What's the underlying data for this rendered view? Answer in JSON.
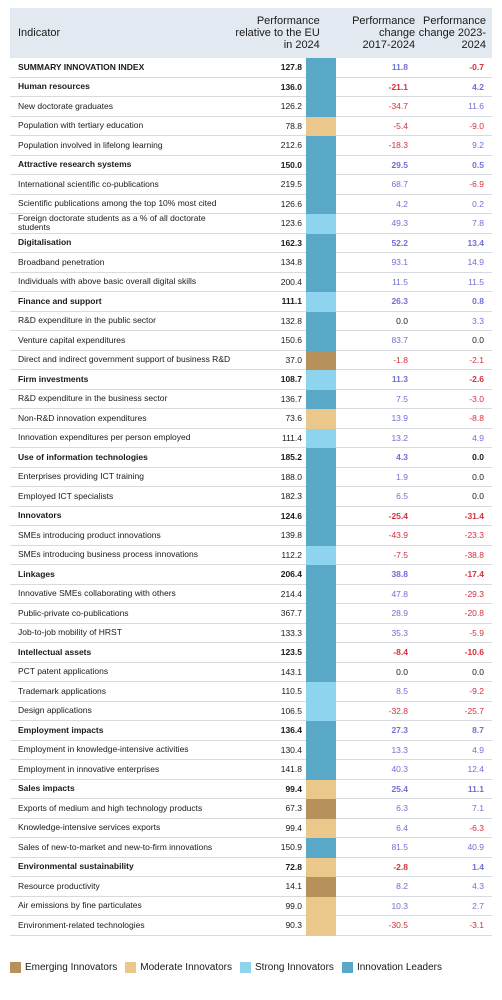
{
  "header": {
    "indicator": "Indicator",
    "perf_rel": "Performance relative to the EU in 2024",
    "change1": "Performance change 2017-2024",
    "change2": "Performance change 2023-2024"
  },
  "colors": {
    "emerging": "#b8905c",
    "moderate": "#eac88b",
    "strong": "#8fd4ee",
    "leader": "#5aa8c8",
    "positive": "#6f6fd6",
    "negative": "#d4303d"
  },
  "rows": [
    {
      "label": "SUMMARY INNOVATION INDEX",
      "perf": "127.8",
      "group": "leader",
      "ch1": "11.8",
      "ch2": "-0.7",
      "bold": true
    },
    {
      "label": "Human resources",
      "perf": "136.0",
      "group": "leader",
      "ch1": "-21.1",
      "ch2": "4.2",
      "bold": true
    },
    {
      "label": "New doctorate graduates",
      "perf": "126.2",
      "group": "leader",
      "ch1": "-34.7",
      "ch2": "11.6",
      "bold": false
    },
    {
      "label": "Population with tertiary education",
      "perf": "78.8",
      "group": "moderate",
      "ch1": "-5.4",
      "ch2": "-9.0",
      "bold": false
    },
    {
      "label": "Population involved in lifelong learning",
      "perf": "212.6",
      "group": "leader",
      "ch1": "-18.3",
      "ch2": "9.2",
      "bold": false
    },
    {
      "label": "Attractive research systems",
      "perf": "150.0",
      "group": "leader",
      "ch1": "29.5",
      "ch2": "0.5",
      "bold": true
    },
    {
      "label": "International scientific co-publications",
      "perf": "219.5",
      "group": "leader",
      "ch1": "68.7",
      "ch2": "-6.9",
      "bold": false
    },
    {
      "label": "Scientific publications among the top 10% most cited",
      "perf": "126.6",
      "group": "leader",
      "ch1": "4.2",
      "ch2": "0.2",
      "bold": false
    },
    {
      "label": "Foreign doctorate students as a % of all doctorate students",
      "perf": "123.6",
      "group": "strong",
      "ch1": "49.3",
      "ch2": "7.8",
      "bold": false
    },
    {
      "label": "Digitalisation",
      "perf": "162.3",
      "group": "leader",
      "ch1": "52.2",
      "ch2": "13.4",
      "bold": true
    },
    {
      "label": "Broadband penetration",
      "perf": "134.8",
      "group": "leader",
      "ch1": "93.1",
      "ch2": "14.9",
      "bold": false
    },
    {
      "label": "Individuals with above basic overall digital skills",
      "perf": "200.4",
      "group": "leader",
      "ch1": "11.5",
      "ch2": "11.5",
      "bold": false
    },
    {
      "label": "Finance and support",
      "perf": "111.1",
      "group": "strong",
      "ch1": "26.3",
      "ch2": "0.8",
      "bold": true
    },
    {
      "label": "R&D expenditure in the public sector",
      "perf": "132.8",
      "group": "leader",
      "ch1": "0.0",
      "ch2": "3.3",
      "bold": false
    },
    {
      "label": "Venture capital expenditures",
      "perf": "150.6",
      "group": "leader",
      "ch1": "83.7",
      "ch2": "0.0",
      "bold": false
    },
    {
      "label": "Direct and indirect government support of business R&D",
      "perf": "37.0",
      "group": "emerging",
      "ch1": "-1.8",
      "ch2": "-2.1",
      "bold": false
    },
    {
      "label": "Firm investments",
      "perf": "108.7",
      "group": "strong",
      "ch1": "11.3",
      "ch2": "-2.6",
      "bold": true
    },
    {
      "label": "R&D expenditure in the business sector",
      "perf": "136.7",
      "group": "leader",
      "ch1": "7.5",
      "ch2": "-3.0",
      "bold": false
    },
    {
      "label": "Non-R&D innovation expenditures",
      "perf": "73.6",
      "group": "moderate",
      "ch1": "13.9",
      "ch2": "-8.8",
      "bold": false
    },
    {
      "label": "Innovation expenditures per person employed",
      "perf": "111.4",
      "group": "strong",
      "ch1": "13.2",
      "ch2": "4.9",
      "bold": false
    },
    {
      "label": "Use of information technologies",
      "perf": "185.2",
      "group": "leader",
      "ch1": "4.3",
      "ch2": "0.0",
      "bold": true
    },
    {
      "label": "Enterprises providing ICT training",
      "perf": "188.0",
      "group": "leader",
      "ch1": "1.9",
      "ch2": "0.0",
      "bold": false
    },
    {
      "label": "Employed ICT specialists",
      "perf": "182.3",
      "group": "leader",
      "ch1": "6.5",
      "ch2": "0.0",
      "bold": false
    },
    {
      "label": "Innovators",
      "perf": "124.6",
      "group": "leader",
      "ch1": "-25.4",
      "ch2": "-31.4",
      "bold": true
    },
    {
      "label": "SMEs introducing product innovations",
      "perf": "139.8",
      "group": "leader",
      "ch1": "-43.9",
      "ch2": "-23.3",
      "bold": false
    },
    {
      "label": "SMEs introducing business process innovations",
      "perf": "112.2",
      "group": "strong",
      "ch1": "-7.5",
      "ch2": "-38.8",
      "bold": false
    },
    {
      "label": "Linkages",
      "perf": "206.4",
      "group": "leader",
      "ch1": "38.8",
      "ch2": "-17.4",
      "bold": true
    },
    {
      "label": "Innovative SMEs collaborating with others",
      "perf": "214.4",
      "group": "leader",
      "ch1": "47.8",
      "ch2": "-29.3",
      "bold": false
    },
    {
      "label": "Public-private co-publications",
      "perf": "367.7",
      "group": "leader",
      "ch1": "28.9",
      "ch2": "-20.8",
      "bold": false
    },
    {
      "label": "Job-to-job mobility of HRST",
      "perf": "133.3",
      "group": "leader",
      "ch1": "35.3",
      "ch2": "-5.9",
      "bold": false
    },
    {
      "label": "Intellectual assets",
      "perf": "123.5",
      "group": "leader",
      "ch1": "-8.4",
      "ch2": "-10.6",
      "bold": true
    },
    {
      "label": "PCT patent applications",
      "perf": "143.1",
      "group": "leader",
      "ch1": "0.0",
      "ch2": "0.0",
      "bold": false
    },
    {
      "label": "Trademark applications",
      "perf": "110.5",
      "group": "strong",
      "ch1": "8.5",
      "ch2": "-9.2",
      "bold": false
    },
    {
      "label": "Design applications",
      "perf": "106.5",
      "group": "strong",
      "ch1": "-32.8",
      "ch2": "-25.7",
      "bold": false
    },
    {
      "label": "Employment impacts",
      "perf": "136.4",
      "group": "leader",
      "ch1": "27.3",
      "ch2": "8.7",
      "bold": true
    },
    {
      "label": "Employment in knowledge-intensive activities",
      "perf": "130.4",
      "group": "leader",
      "ch1": "13.3",
      "ch2": "4.9",
      "bold": false
    },
    {
      "label": "Employment in innovative enterprises",
      "perf": "141.8",
      "group": "leader",
      "ch1": "40.3",
      "ch2": "12.4",
      "bold": false
    },
    {
      "label": "Sales impacts",
      "perf": "99.4",
      "group": "moderate",
      "ch1": "25.4",
      "ch2": "11.1",
      "bold": true
    },
    {
      "label": "Exports of medium and high technology products",
      "perf": "67.3",
      "group": "emerging",
      "ch1": "6.3",
      "ch2": "7.1",
      "bold": false
    },
    {
      "label": "Knowledge-intensive services exports",
      "perf": "99.4",
      "group": "moderate",
      "ch1": "6.4",
      "ch2": "-6.3",
      "bold": false
    },
    {
      "label": "Sales of new-to-market and new-to-firm innovations",
      "perf": "150.9",
      "group": "leader",
      "ch1": "81.5",
      "ch2": "40.9",
      "bold": false
    },
    {
      "label": "Environmental sustainability",
      "perf": "72.8",
      "group": "moderate",
      "ch1": "-2.8",
      "ch2": "1.4",
      "bold": true
    },
    {
      "label": "Resource productivity",
      "perf": "14.1",
      "group": "emerging",
      "ch1": "8.2",
      "ch2": "4.3",
      "bold": false
    },
    {
      "label": "Air emissions by fine particulates",
      "perf": "99.0",
      "group": "moderate",
      "ch1": "10.3",
      "ch2": "2.7",
      "bold": false
    },
    {
      "label": "Environment-related technologies",
      "perf": "90.3",
      "group": "moderate",
      "ch1": "-30.5",
      "ch2": "-3.1",
      "bold": false
    }
  ],
  "legend": [
    {
      "key": "emerging",
      "label": "Emerging Innovators"
    },
    {
      "key": "moderate",
      "label": "Moderate Innovators"
    },
    {
      "key": "strong",
      "label": "Strong Innovators"
    },
    {
      "key": "leader",
      "label": "Innovation Leaders"
    }
  ]
}
